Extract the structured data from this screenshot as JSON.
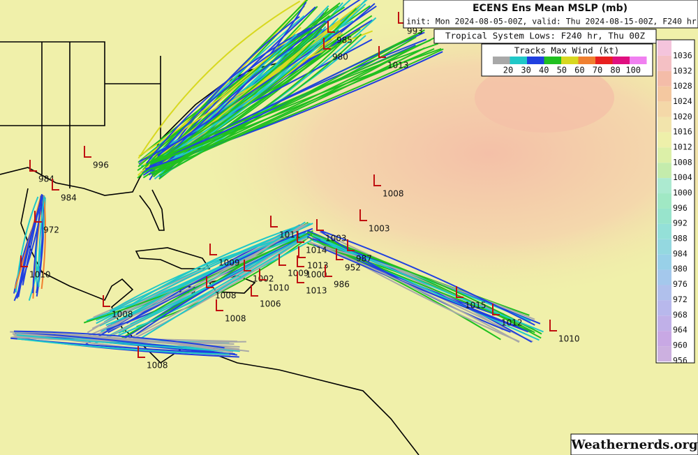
{
  "header": {
    "title": "ECENS Ens Mean MSLP (mb)",
    "subtitle": "init: Mon 2024-08-05-00Z, valid: Thu 2024-08-15-00Z, F240 hr"
  },
  "lows_title": "Tropical System Lows: F240 hr, Thu 00Z",
  "wind_legend": {
    "title": "Tracks Max Wind (kt)",
    "labels": [
      "20",
      "30",
      "40",
      "50",
      "60",
      "70",
      "80",
      "100"
    ],
    "colors": [
      "#a8a8a8",
      "#20c8c8",
      "#2040e0",
      "#20c020",
      "#d8d820",
      "#f08030",
      "#e82020",
      "#e01080",
      "#f080f0"
    ]
  },
  "colorbar": {
    "labels": [
      "1036",
      "1032",
      "1028",
      "1024",
      "1020",
      "1016",
      "1012",
      "1008",
      "1004",
      "1000",
      "996",
      "992",
      "988",
      "984",
      "980",
      "976",
      "972",
      "968",
      "964",
      "960",
      "956"
    ],
    "colors": [
      "#f4c4dc",
      "#f4c0c4",
      "#f4bca8",
      "#f4c8a0",
      "#f4d8a8",
      "#f2e4ac",
      "#eef0aa",
      "#dcf0a8",
      "#c4ecac",
      "#acead0",
      "#a0e8c4",
      "#98e4cc",
      "#94e0d8",
      "#94d8e0",
      "#98d0e8",
      "#a4c8ec",
      "#b0c0ec",
      "#b8b8ec",
      "#c0b0e8",
      "#c8a8e4",
      "#ccb0e0"
    ]
  },
  "lows": [
    "993",
    "985",
    "980",
    "1013",
    "996",
    "984",
    "984",
    "1008",
    "972",
    "1003",
    "1011",
    "1003",
    "1009",
    "1010",
    "1014",
    "1013",
    "987",
    "952",
    "1002",
    "1009",
    "1000",
    "1010",
    "1013",
    "986",
    "1006",
    "1008",
    "1008",
    "1008",
    "1015",
    "1012",
    "1010",
    "1008"
  ],
  "watermark": "Weathernerds.org"
}
